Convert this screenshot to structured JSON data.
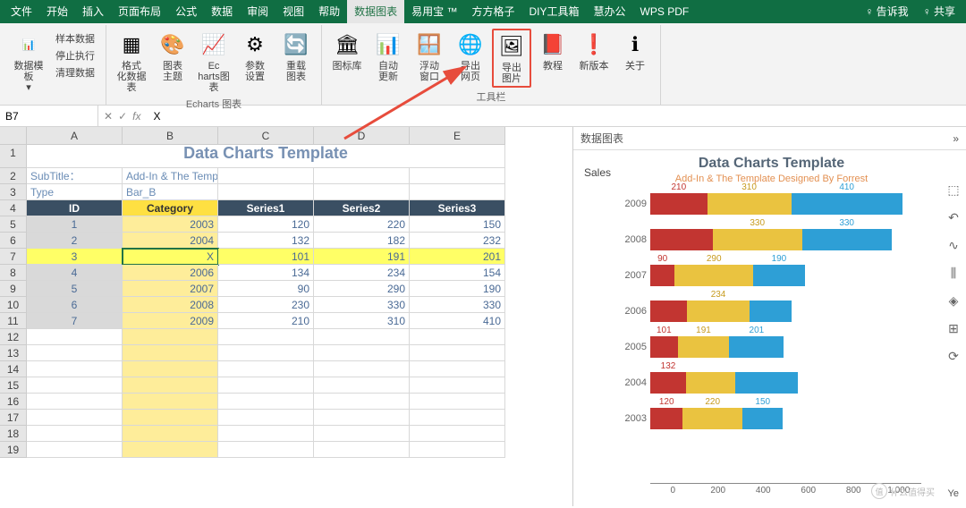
{
  "menubar": {
    "items": [
      "文件",
      "开始",
      "插入",
      "页面布局",
      "公式",
      "数据",
      "审阅",
      "视图",
      "帮助",
      "数据图表",
      "易用宝 ™",
      "方方格子",
      "DIY工具箱",
      "慧办公",
      "WPS PDF"
    ],
    "active_index": 9,
    "tell_me": "♀ 告诉我",
    "share": "♀ 共享"
  },
  "ribbon": {
    "groups": [
      {
        "label": "",
        "buttons": [
          {
            "name": "数据模板",
            "icon": "📊"
          }
        ],
        "side": [
          "样本数据",
          "停止执行",
          "清理数据"
        ]
      },
      {
        "label": "Echarts 图表",
        "buttons": [
          {
            "name": "格式化数据表",
            "icon": "▦"
          },
          {
            "name": "图表主题",
            "icon": "🎨"
          },
          {
            "name": "Echarts图表",
            "icon": "📈"
          },
          {
            "name": "参数设置",
            "icon": "⚙"
          },
          {
            "name": "重载图表",
            "icon": "🔄"
          }
        ]
      },
      {
        "label": "工具栏",
        "buttons": [
          {
            "name": "图标库",
            "icon": "🏛"
          },
          {
            "name": "自动更新",
            "icon": "📊"
          },
          {
            "name": "浮动窗口",
            "icon": "🪟"
          },
          {
            "name": "导出网页",
            "icon": "🌐"
          },
          {
            "name": "导出图片",
            "icon": "🖼",
            "highlighted": true
          },
          {
            "name": "教程",
            "icon": "📕"
          },
          {
            "name": "新版本",
            "icon": "❗"
          },
          {
            "name": "关于",
            "icon": "ℹ"
          }
        ]
      }
    ]
  },
  "namebox": {
    "ref": "B7",
    "formula": "X"
  },
  "columns": [
    "A",
    "B",
    "C",
    "D",
    "E"
  ],
  "sheet": {
    "title": "Data Charts Template",
    "subtitle_label": "SubTitle：",
    "subtitle": "Add-In & The Template Designed By Forrest",
    "type_label": "Type",
    "type_value": "Bar_B",
    "headers": [
      "ID",
      "Category",
      "Series1",
      "Series2",
      "Series3"
    ],
    "rows": [
      {
        "n": 5,
        "id": "1",
        "cat": "2003",
        "s1": "120",
        "s2": "220",
        "s3": "150"
      },
      {
        "n": 6,
        "id": "2",
        "cat": "2004",
        "s1": "132",
        "s2": "182",
        "s3": "232"
      },
      {
        "n": 7,
        "id": "3",
        "cat": "X",
        "s1": "101",
        "s2": "191",
        "s3": "201",
        "selected": true
      },
      {
        "n": 8,
        "id": "4",
        "cat": "2006",
        "s1": "134",
        "s2": "234",
        "s3": "154"
      },
      {
        "n": 9,
        "id": "5",
        "cat": "2007",
        "s1": "90",
        "s2": "290",
        "s3": "190"
      },
      {
        "n": 10,
        "id": "6",
        "cat": "2008",
        "s1": "230",
        "s2": "330",
        "s3": "330"
      },
      {
        "n": 11,
        "id": "7",
        "cat": "2009",
        "s1": "210",
        "s2": "310",
        "s3": "410"
      }
    ],
    "empty_rows": [
      12,
      13,
      14,
      15,
      16,
      17,
      18,
      19
    ]
  },
  "panel": {
    "title": "数据图表",
    "expand": "»",
    "chart": {
      "title": "Data Charts Template",
      "subtitle": "Add-In & The Template Designed By Forrest",
      "ylabel": "Sales",
      "xlabel": "Ye",
      "colors": {
        "s1": "#c23531",
        "s2": "#eac340",
        "s3": "#2e9fd6"
      },
      "max": 1000,
      "bars": [
        {
          "year": "2009",
          "s1": 210,
          "s2": 310,
          "s3": 410,
          "l1": "210",
          "l2": "310",
          "l3": "410"
        },
        {
          "year": "2008",
          "s1": 230,
          "s2": 330,
          "s3": 330,
          "l1": "",
          "l2": "330",
          "l3": "330"
        },
        {
          "year": "2007",
          "s1": 90,
          "s2": 290,
          "s3": 190,
          "l1": "90",
          "l2": "290",
          "l3": "190"
        },
        {
          "year": "2006",
          "s1": 134,
          "s2": 234,
          "s3": 154,
          "l1": "",
          "l2": "234",
          "l3": ""
        },
        {
          "year": "2005",
          "s1": 101,
          "s2": 191,
          "s3": 201,
          "l1": "101",
          "l2": "191",
          "l3": "201"
        },
        {
          "year": "2004",
          "s1": 132,
          "s2": 182,
          "s3": 232,
          "l1": "132",
          "l2": "",
          "l3": ""
        },
        {
          "year": "2003",
          "s1": 120,
          "s2": 220,
          "s3": 150,
          "l1": "120",
          "l2": "220",
          "l3": "150"
        }
      ],
      "xticks": [
        "0",
        "200",
        "400",
        "600",
        "800",
        "1,000"
      ]
    },
    "tools": [
      "⬚",
      "↶",
      "∿",
      "⫼",
      "◈",
      "⊞",
      "⟳"
    ]
  },
  "watermark": "什么值得买"
}
